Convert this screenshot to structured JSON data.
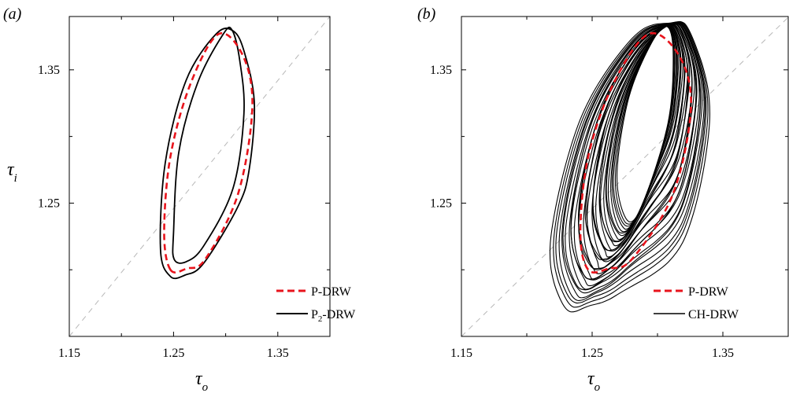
{
  "chart_data": [
    {
      "type": "line",
      "panel_label": "(a)",
      "xlabel": "τ",
      "xlabel_sub": "o",
      "ylabel": "τ",
      "ylabel_sub": "i",
      "xlim": [
        1.15,
        1.4
      ],
      "ylim": [
        1.15,
        1.39
      ],
      "x_tick_labels": [
        "1.15",
        "1.25",
        "1.35"
      ],
      "x_tick_values": [
        1.15,
        1.25,
        1.35
      ],
      "y_tick_labels": [
        "1.25",
        "1.35"
      ],
      "y_tick_values": [
        1.25,
        1.35
      ],
      "minor_ticks_x": [
        1.2,
        1.3
      ],
      "minor_ticks_y": [
        1.2,
        1.3
      ],
      "diagonal": "y = x, dashed grey",
      "legend_position": "bottom-right",
      "series": [
        {
          "name": "P-DRW",
          "legend_main": "P-DRW",
          "legend_sub": "",
          "legend_tail": "",
          "color": "#e8141c",
          "style": "dashed",
          "x": [
            1.247,
            1.241,
            1.247,
            1.2665,
            1.2935,
            1.3175,
            1.3255,
            1.3115,
            1.2805,
            1.263,
            1.247
          ],
          "y": [
            1.2,
            1.228,
            1.285,
            1.34,
            1.377,
            1.359,
            1.32,
            1.256,
            1.208,
            1.201,
            1.2
          ]
        },
        {
          "name": "P2-DRW outer",
          "legend_main": "P",
          "legend_sub": "2",
          "legend_tail": "-DRW",
          "color": "#000000",
          "style": "solid",
          "x": [
            1.247,
            1.2375,
            1.242,
            1.262,
            1.291,
            1.3075,
            1.318,
            1.3275,
            1.3225,
            1.3115,
            1.279,
            1.261,
            1.247
          ],
          "y": [
            1.195,
            1.215,
            1.28,
            1.342,
            1.377,
            1.379,
            1.363,
            1.325,
            1.275,
            1.247,
            1.205,
            1.196,
            1.195
          ]
        },
        {
          "name": "P2-DRW inner",
          "legend_main": "",
          "legend_sub": "",
          "legend_tail": "",
          "color": "#000000",
          "style": "solid",
          "x": [
            1.2505,
            1.25,
            1.255,
            1.273,
            1.297,
            1.306,
            1.3135,
            1.3175,
            1.307,
            1.279,
            1.262,
            1.2505
          ],
          "y": [
            1.208,
            1.228,
            1.288,
            1.34,
            1.376,
            1.38,
            1.357,
            1.317,
            1.261,
            1.218,
            1.206,
            1.208
          ]
        }
      ]
    },
    {
      "type": "line",
      "panel_label": "(b)",
      "xlabel": "τ",
      "xlabel_sub": "o",
      "ylabel": "",
      "ylabel_sub": "",
      "xlim": [
        1.15,
        1.4
      ],
      "ylim": [
        1.15,
        1.39
      ],
      "x_tick_labels": [
        "1.15",
        "1.25",
        "1.35"
      ],
      "x_tick_values": [
        1.15,
        1.25,
        1.35
      ],
      "y_tick_labels": [
        "1.25",
        "1.35"
      ],
      "y_tick_values": [
        1.25,
        1.35
      ],
      "minor_ticks_x": [
        1.2,
        1.3
      ],
      "minor_ticks_y": [
        1.2,
        1.3
      ],
      "diagonal": "y = x, dashed grey",
      "legend_position": "bottom-right",
      "chaotic_family": {
        "name": "CH-DRW",
        "color": "#000000",
        "style": "solid",
        "outer_ring": {
          "x": [
            1.229,
            1.218,
            1.241,
            1.281,
            1.309,
            1.325,
            1.34,
            1.319,
            1.272,
            1.248,
            1.229
          ],
          "y": [
            1.172,
            1.22,
            1.313,
            1.374,
            1.385,
            1.378,
            1.315,
            1.22,
            1.183,
            1.173,
            1.172
          ]
        },
        "inner_ring": {
          "x": [
            1.277,
            1.269,
            1.278,
            1.297,
            1.308,
            1.312,
            1.308,
            1.289,
            1.277
          ],
          "y": [
            1.237,
            1.27,
            1.329,
            1.373,
            1.382,
            1.36,
            1.31,
            1.25,
            1.237
          ]
        },
        "loop_count": 34
      },
      "series": [
        {
          "name": "P-DRW",
          "legend_main": "P-DRW",
          "legend_sub": "",
          "legend_tail": "",
          "color": "#e8141c",
          "style": "dashed",
          "x": [
            1.247,
            1.241,
            1.247,
            1.2665,
            1.2935,
            1.3175,
            1.3255,
            1.3115,
            1.2805,
            1.263,
            1.247
          ],
          "y": [
            1.2,
            1.228,
            1.285,
            1.34,
            1.377,
            1.359,
            1.32,
            1.256,
            1.208,
            1.201,
            1.2
          ]
        },
        {
          "name": "CH-DRW",
          "legend_main": "CH-DRW",
          "legend_sub": "",
          "legend_tail": "",
          "color": "#000000",
          "style": "solid",
          "x": [],
          "y": []
        }
      ]
    }
  ]
}
